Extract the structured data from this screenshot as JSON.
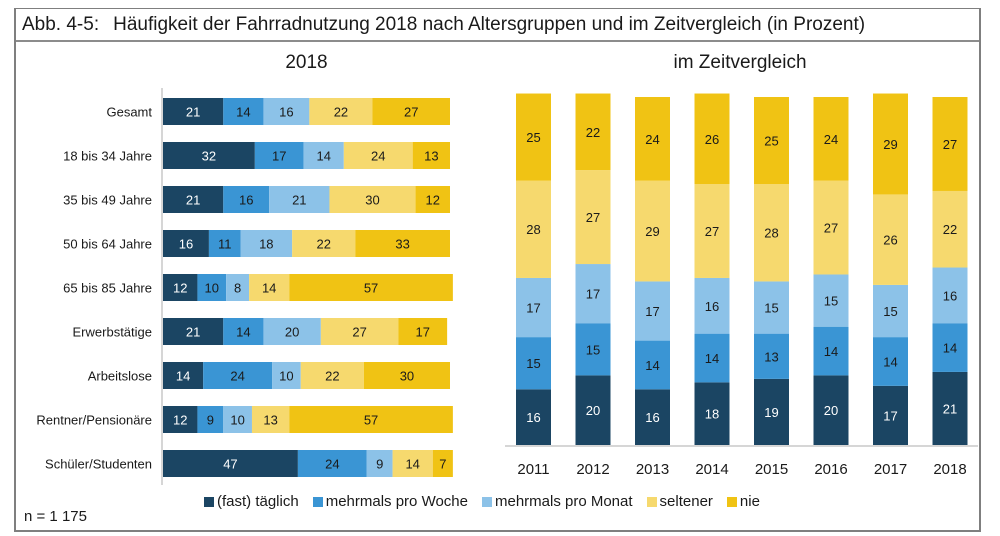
{
  "header": {
    "figure_number": "Abb. 4-5:",
    "title": "Häufigkeit der Fahrradnutzung 2018 nach Altersgruppen und im Zeitvergleich (in Prozent)"
  },
  "footnote": "n = 1 175",
  "colors": {
    "fast_taeglich": "#1b4563",
    "mehrmals_woche": "#3a95d4",
    "mehrmals_monat": "#8cc2e8",
    "seltener": "#f6d96e",
    "nie": "#f0c314",
    "axis": "#c8c8c8"
  },
  "legend": [
    {
      "label": "(fast) täglich",
      "color": "#1b4563"
    },
    {
      "label": "mehrmals pro Woche",
      "color": "#3a95d4"
    },
    {
      "label": "mehrmals pro Monat",
      "color": "#8cc2e8"
    },
    {
      "label": "seltener",
      "color": "#f6d96e"
    },
    {
      "label": "nie",
      "color": "#f0c314"
    }
  ],
  "chart_data": [
    {
      "type": "bar",
      "orientation": "horizontal",
      "stacked": true,
      "title": "2018",
      "xlabel": "",
      "ylabel": "",
      "xlim": [
        0,
        100
      ],
      "grid": false,
      "legend_position": "bottom",
      "categories": [
        "Gesamt",
        "18 bis 34 Jahre",
        "35 bis 49 Jahre",
        "50 bis 64 Jahre",
        "65 bis 85 Jahre",
        "Erwerbstätige",
        "Arbeitslose",
        "Rentner/Pensionäre",
        "Schüler/Studenten"
      ],
      "series": [
        {
          "name": "(fast) täglich",
          "values": [
            21,
            32,
            21,
            16,
            12,
            21,
            14,
            12,
            47
          ]
        },
        {
          "name": "mehrmals pro Woche",
          "values": [
            14,
            17,
            16,
            11,
            10,
            14,
            24,
            9,
            24
          ]
        },
        {
          "name": "mehrmals pro Monat",
          "values": [
            16,
            14,
            21,
            18,
            8,
            20,
            10,
            10,
            9
          ]
        },
        {
          "name": "seltener",
          "values": [
            22,
            24,
            30,
            22,
            14,
            27,
            22,
            13,
            14
          ]
        },
        {
          "name": "nie",
          "values": [
            27,
            13,
            12,
            33,
            57,
            17,
            30,
            57,
            7
          ]
        }
      ]
    },
    {
      "type": "bar",
      "orientation": "vertical",
      "stacked": true,
      "title": "im Zeitvergleich",
      "xlabel": "",
      "ylabel": "",
      "ylim": [
        0,
        100
      ],
      "grid": false,
      "legend_position": "bottom",
      "categories": [
        "2011",
        "2012",
        "2013",
        "2014",
        "2015",
        "2016",
        "2017",
        "2018"
      ],
      "series": [
        {
          "name": "(fast) täglich",
          "values": [
            16,
            20,
            16,
            18,
            19,
            20,
            17,
            21
          ]
        },
        {
          "name": "mehrmals pro Woche",
          "values": [
            15,
            15,
            14,
            14,
            13,
            14,
            14,
            14
          ]
        },
        {
          "name": "mehrmals pro Monat",
          "values": [
            17,
            17,
            17,
            16,
            15,
            15,
            15,
            16
          ]
        },
        {
          "name": "seltener",
          "values": [
            28,
            27,
            29,
            27,
            28,
            27,
            26,
            22
          ]
        },
        {
          "name": "nie",
          "values": [
            25,
            22,
            24,
            26,
            25,
            24,
            29,
            27
          ]
        }
      ]
    }
  ]
}
